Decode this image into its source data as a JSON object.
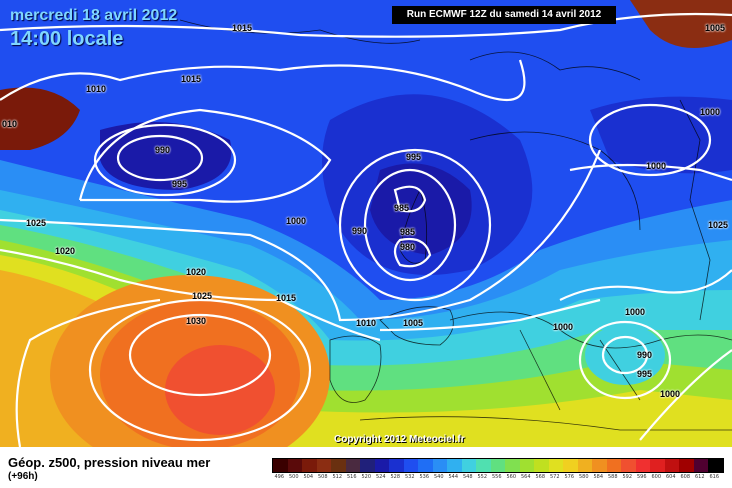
{
  "header": {
    "date": "mercredi 18 avril 2012",
    "time": "14:00 locale",
    "run": "Run ECMWF 12Z du samedi 14 avril 2012"
  },
  "copyright": "Copyright 2012 Meteociel.fr",
  "legend": {
    "title": "Géop. z500, pression niveau mer",
    "subtitle": "(+96h)",
    "scale_values": [
      "496",
      "500",
      "504",
      "508",
      "512",
      "516",
      "520",
      "524",
      "528",
      "532",
      "536",
      "540",
      "544",
      "548",
      "552",
      "556",
      "560",
      "564",
      "568",
      "572",
      "576",
      "580",
      "584",
      "588",
      "592",
      "596",
      "600",
      "604",
      "608",
      "612",
      "616"
    ],
    "scale_colors": [
      "#3a0000",
      "#5a0a0a",
      "#7a1a0a",
      "#8b2d12",
      "#6a3010",
      "#4a2a40",
      "#20207a",
      "#1a1aa8",
      "#1a30d0",
      "#1f4ef0",
      "#1f6ef5",
      "#2a8ef5",
      "#30b0f0",
      "#40d0e0",
      "#50e0b0",
      "#60e080",
      "#80e050",
      "#a0e030",
      "#c0e020",
      "#e0e020",
      "#f0d020",
      "#f0b020",
      "#f09020",
      "#f07020",
      "#f05030",
      "#f03030",
      "#e02020",
      "#c01010",
      "#a00000",
      "#500030",
      "#000000"
    ]
  },
  "isobar_labels": [
    "1015",
    "1010",
    "010",
    "1015",
    "990",
    "995",
    "1025",
    "1020",
    "1020",
    "1025",
    "1030",
    "1000",
    "1015",
    "990",
    "985",
    "985",
    "980",
    "995",
    "1000",
    "1010",
    "1005",
    "1000",
    "1000",
    "1000",
    "990",
    "995",
    "1005",
    "1025",
    "1000"
  ],
  "colors": {
    "deep_blue": "#1f4ef0",
    "cyan": "#40d0e0",
    "green": "#60e080",
    "yellow": "#e0e020",
    "orange": "#f09020",
    "red": "#f03030"
  }
}
